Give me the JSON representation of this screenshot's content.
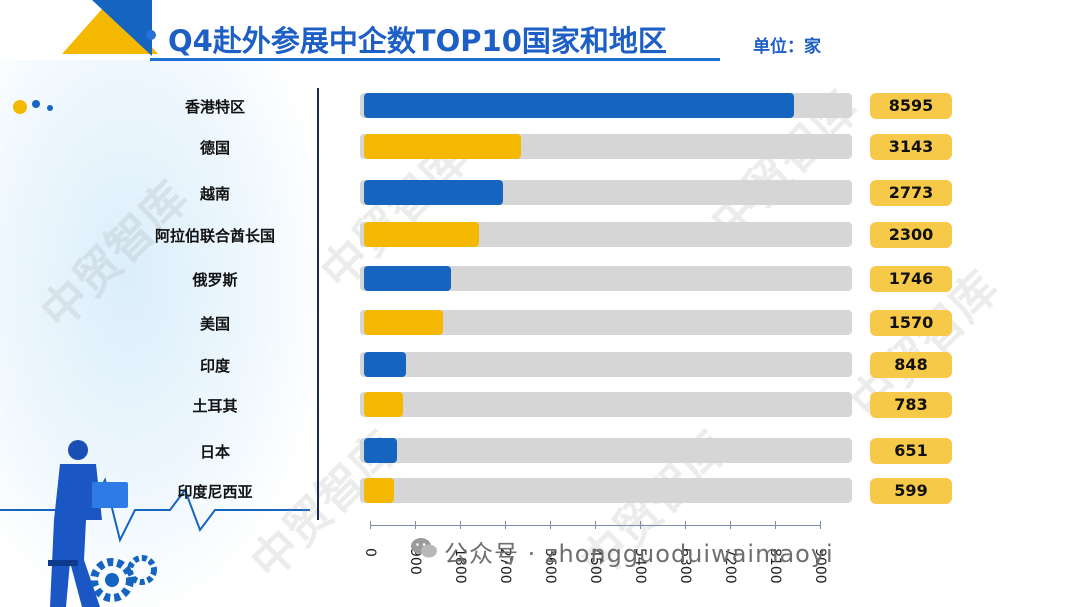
{
  "header": {
    "title": "Q4赴外参展中企数TOP10国家和地区",
    "unit": "单位：家"
  },
  "footer": {
    "text": "公众号 · zhongguoduiwaimaoyi"
  },
  "watermark": "中贸智库",
  "colors": {
    "blue": "#1565c0",
    "yellow": "#f5b800",
    "track": "#d6d6d6",
    "value_box": "#f7c948",
    "title": "#1d5fc5"
  },
  "chart_data": {
    "type": "bar",
    "orientation": "horizontal",
    "categories": [
      "香港特区",
      "德国",
      "越南",
      "阿拉伯联合酋长国",
      "俄罗斯",
      "美国",
      "印度",
      "土耳其",
      "日本",
      "印度尼西亚"
    ],
    "values": [
      8595,
      3143,
      2773,
      2300,
      1746,
      1570,
      848,
      783,
      651,
      599
    ],
    "value_labels": [
      "8595",
      "3143",
      "2773",
      "2300",
      "1746",
      "1570",
      "848",
      "783",
      "651",
      "599"
    ],
    "bar_colors": [
      "blue",
      "yellow",
      "blue",
      "yellow",
      "blue",
      "yellow",
      "blue",
      "yellow",
      "blue",
      "yellow"
    ],
    "title": "Q4赴外参展中企数TOP10国家和地区",
    "xlabel": "",
    "ylabel": "",
    "xlim": [
      0,
      9000
    ],
    "x_ticks": [
      "0",
      "900",
      "1800",
      "2700",
      "3600",
      "4500",
      "5400",
      "6300",
      "7200",
      "8100",
      "9000"
    ],
    "grid": false
  }
}
